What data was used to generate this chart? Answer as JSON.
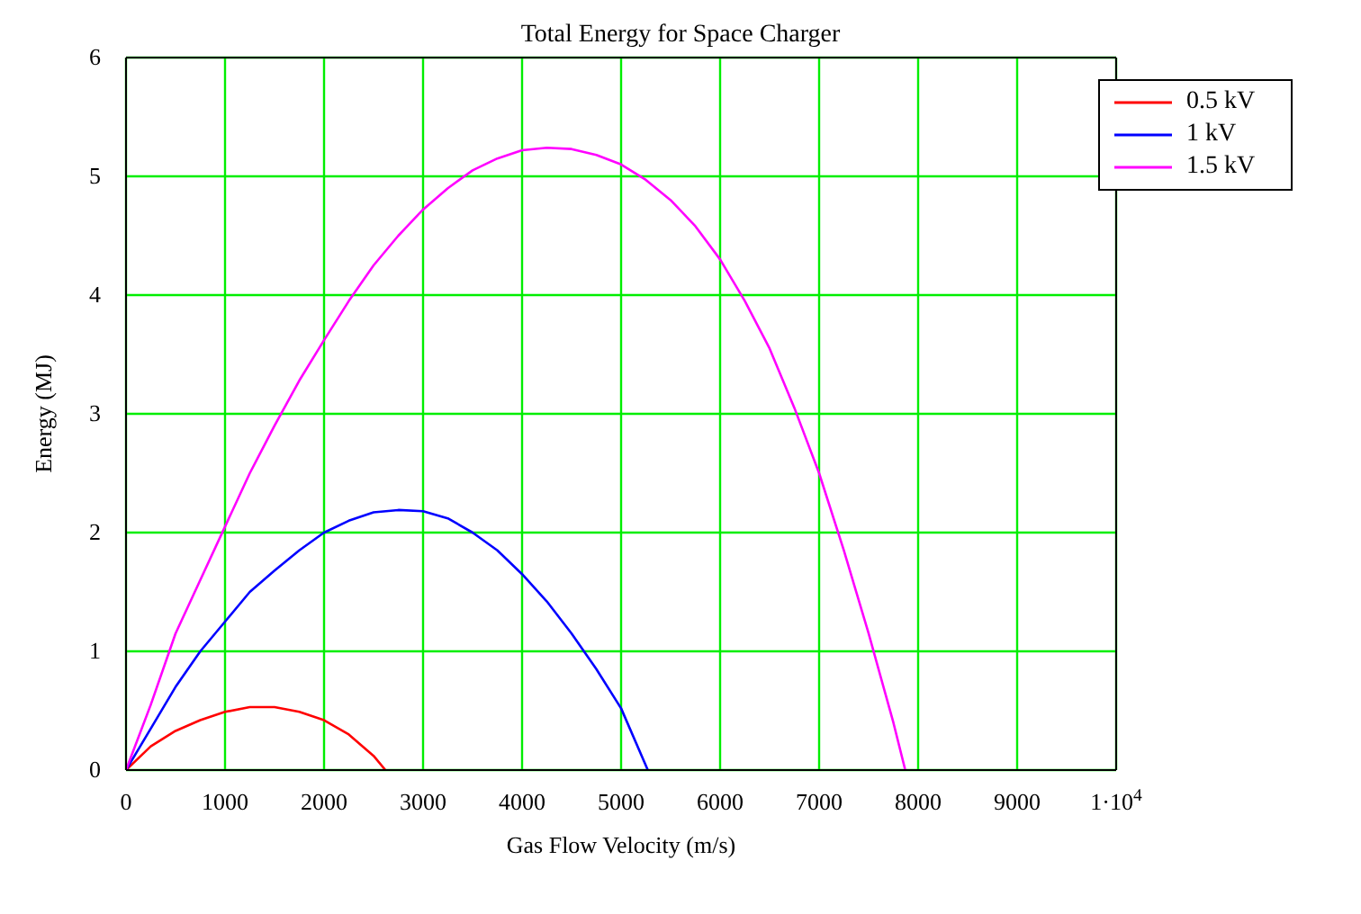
{
  "chart_data": {
    "type": "line",
    "title": "Total Energy for Space Charger",
    "xlabel": "Gas Flow Velocity (m/s)",
    "ylabel": "Energy (MJ)",
    "xlim": [
      0,
      10000
    ],
    "xticks": [
      0,
      1000,
      2000,
      3000,
      4000,
      5000,
      6000,
      7000,
      8000,
      9000,
      {
        "value": 10000,
        "label": "1·10$^{4}$"
      }
    ],
    "ylim": [
      0,
      6
    ],
    "yticks": [
      0,
      1,
      2,
      3,
      4,
      5,
      6
    ],
    "grid": true,
    "legend": "top right",
    "marker": "none",
    "line_style": "solid",
    "series": [
      {
        "name": "0.5 kV",
        "color": "#ff0000",
        "x": [
          0,
          250,
          500,
          750,
          1000,
          1250,
          1500,
          1750,
          2000,
          2250,
          2500,
          2620
        ],
        "values": [
          0,
          0.2,
          0.33,
          0.42,
          0.49,
          0.53,
          0.53,
          0.49,
          0.42,
          0.3,
          0.12,
          0
        ]
      },
      {
        "name": "1 kV",
        "color": "#0000ff",
        "x": [
          0,
          250,
          500,
          750,
          1000,
          1250,
          1500,
          1750,
          2000,
          2250,
          2500,
          2750,
          3000,
          3250,
          3500,
          3750,
          4000,
          4250,
          4500,
          4750,
          5000,
          5270
        ],
        "values": [
          0,
          0.35,
          0.7,
          1.0,
          1.25,
          1.5,
          1.68,
          1.85,
          2.0,
          2.1,
          2.17,
          2.19,
          2.18,
          2.12,
          2.0,
          1.85,
          1.65,
          1.42,
          1.15,
          0.85,
          0.52,
          0
        ]
      },
      {
        "name": "1.5 kV",
        "color": "#ff00ff",
        "x": [
          0,
          250,
          500,
          750,
          1000,
          1250,
          1500,
          1750,
          2000,
          2250,
          2500,
          2750,
          3000,
          3250,
          3500,
          3750,
          4000,
          4250,
          4500,
          4750,
          5000,
          5250,
          5500,
          5750,
          6000,
          6250,
          6500,
          6750,
          7000,
          7250,
          7500,
          7750,
          7870
        ],
        "values": [
          0,
          0.55,
          1.15,
          1.6,
          2.05,
          2.5,
          2.9,
          3.28,
          3.62,
          3.95,
          4.25,
          4.5,
          4.72,
          4.9,
          5.05,
          5.15,
          5.22,
          5.24,
          5.23,
          5.18,
          5.1,
          4.97,
          4.8,
          4.58,
          4.3,
          3.95,
          3.55,
          3.05,
          2.5,
          1.85,
          1.15,
          0.4,
          0
        ]
      }
    ]
  }
}
